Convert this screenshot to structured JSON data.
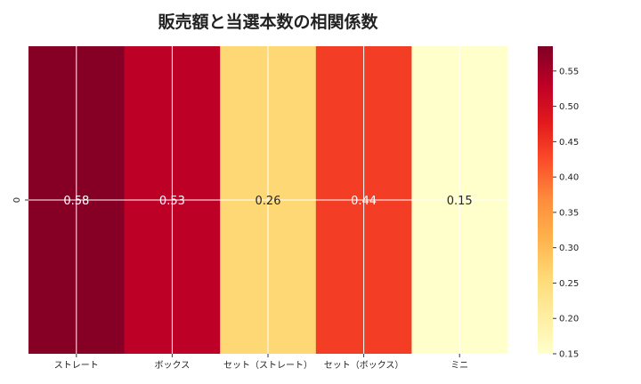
{
  "chart_data": {
    "type": "heatmap",
    "title": "販売額と当選本数の相関係数",
    "x_categories": [
      "ストレート",
      "ボックス",
      "セット（ストレート）",
      "セット（ボックス）",
      "ミニ"
    ],
    "y_categories": [
      "0"
    ],
    "values": [
      [
        0.58,
        0.53,
        0.26,
        0.44,
        0.15
      ]
    ],
    "value_labels": [
      [
        "0.58",
        "0.53",
        "0.26",
        "0.44",
        "0.15"
      ]
    ],
    "colorscale": "YlOrRd",
    "value_range": [
      0.15,
      0.585
    ],
    "colorbar_ticks": [
      "0.15",
      "0.20",
      "0.25",
      "0.30",
      "0.35",
      "0.40",
      "0.45",
      "0.50",
      "0.55"
    ],
    "grid": true,
    "colorbar_position": "right"
  }
}
